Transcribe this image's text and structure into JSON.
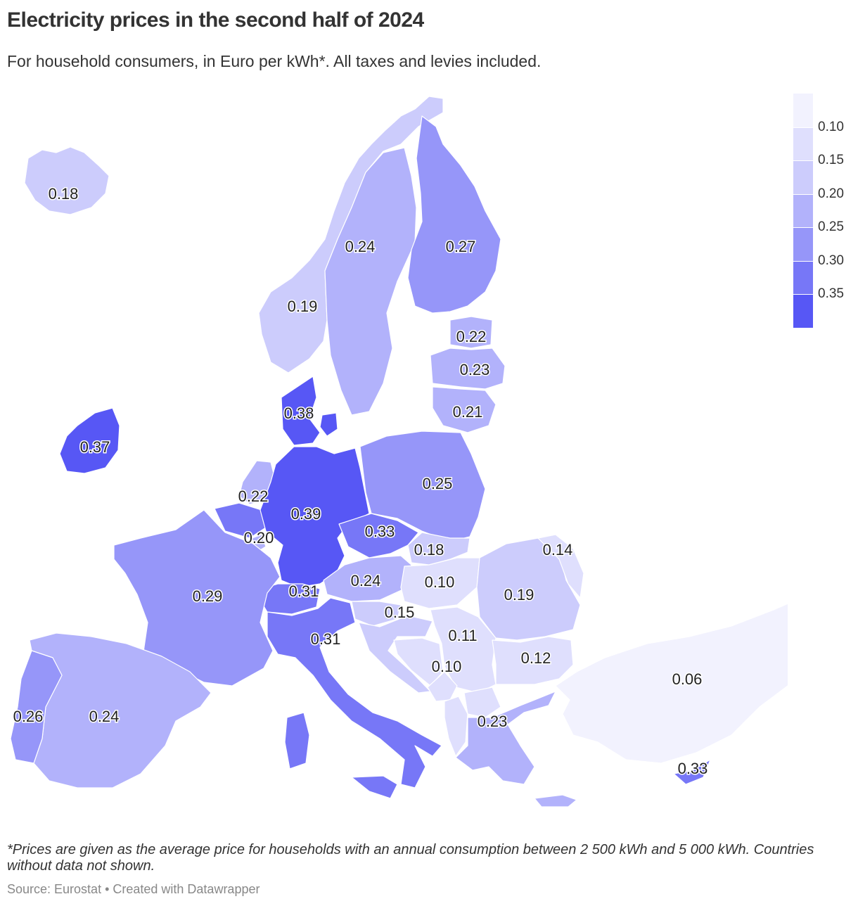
{
  "title": "Electricity prices in the second half of 2024",
  "subtitle": "For household consumers, in Euro per kWh*. All taxes and levies included.",
  "footnote": "*Prices are given as the average price for households with an annual consumption between 2 500 kWh and 5 000 kWh. Countries without data not shown.",
  "source": "Source: Eurostat • Created with Datawrapper",
  "legend": {
    "ticks": [
      "0.10",
      "0.15",
      "0.20",
      "0.25",
      "0.30",
      "0.35"
    ],
    "colors": [
      "#f2f2fe",
      "#dfdffd",
      "#ccccfc",
      "#b2b2fb",
      "#9696f9",
      "#7777f7",
      "#5757f5"
    ]
  },
  "map_data": {
    "type": "choropleth",
    "unit": "Euro per kWh",
    "regions": [
      {
        "id": "iceland",
        "value": 0.18,
        "label": "0.18"
      },
      {
        "id": "norway",
        "value": 0.19,
        "label": "0.19"
      },
      {
        "id": "sweden",
        "value": 0.24,
        "label": "0.24"
      },
      {
        "id": "finland",
        "value": 0.27,
        "label": "0.27"
      },
      {
        "id": "estonia",
        "value": 0.22,
        "label": "0.22"
      },
      {
        "id": "latvia",
        "value": 0.23,
        "label": "0.23"
      },
      {
        "id": "lithuania",
        "value": 0.21,
        "label": "0.21"
      },
      {
        "id": "denmark",
        "value": 0.38,
        "label": "0.38"
      },
      {
        "id": "ireland",
        "value": 0.37,
        "label": "0.37"
      },
      {
        "id": "netherlands",
        "value": 0.22,
        "label": "0.22"
      },
      {
        "id": "belgium",
        "value": 0.33,
        "label": ""
      },
      {
        "id": "luxembourg",
        "value": 0.2,
        "label": "0.20"
      },
      {
        "id": "germany",
        "value": 0.39,
        "label": "0.39"
      },
      {
        "id": "poland",
        "value": 0.25,
        "label": "0.25"
      },
      {
        "id": "czechia",
        "value": 0.33,
        "label": "0.33"
      },
      {
        "id": "slovakia",
        "value": 0.18,
        "label": "0.18"
      },
      {
        "id": "austria",
        "value": 0.24,
        "label": "0.24"
      },
      {
        "id": "hungary",
        "value": 0.1,
        "label": "0.10"
      },
      {
        "id": "moldova",
        "value": 0.14,
        "label": "0.14"
      },
      {
        "id": "romania",
        "value": 0.19,
        "label": "0.19"
      },
      {
        "id": "switzerland",
        "value": 0.31,
        "label": "0.31"
      },
      {
        "id": "france",
        "value": 0.29,
        "label": "0.29"
      },
      {
        "id": "slovenia",
        "value": 0.15,
        "label": "0.15"
      },
      {
        "id": "croatia",
        "value": 0.15,
        "label": ""
      },
      {
        "id": "bosnia",
        "value": 0.1,
        "label": ""
      },
      {
        "id": "serbia",
        "value": 0.11,
        "label": "0.11"
      },
      {
        "id": "montenegro",
        "value": 0.1,
        "label": "0.10"
      },
      {
        "id": "bulgaria",
        "value": 0.12,
        "label": "0.12"
      },
      {
        "id": "north-macedonia",
        "value": 0.1,
        "label": ""
      },
      {
        "id": "albania",
        "value": 0.1,
        "label": ""
      },
      {
        "id": "italy",
        "value": 0.31,
        "label": "0.31"
      },
      {
        "id": "spain",
        "value": 0.24,
        "label": "0.24"
      },
      {
        "id": "portugal",
        "value": 0.26,
        "label": "0.26"
      },
      {
        "id": "greece",
        "value": 0.23,
        "label": "0.23"
      },
      {
        "id": "turkey",
        "value": 0.06,
        "label": "0.06"
      },
      {
        "id": "cyprus",
        "value": 0.33,
        "label": "0.33"
      }
    ]
  }
}
